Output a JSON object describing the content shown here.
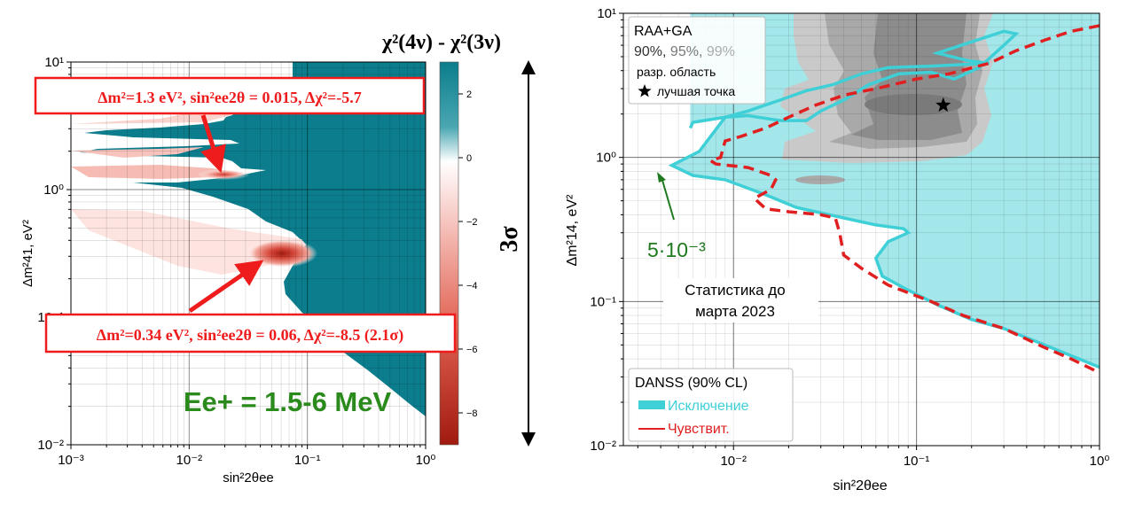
{
  "chart_data": [
    {
      "type": "heatmap",
      "title": "χ²(4ν) - χ²(3ν)",
      "xlabel": "sin²2θee",
      "ylabel": "Δm²41, eV²",
      "xscale": "log",
      "yscale": "log",
      "xlim": [
        0.001,
        1
      ],
      "ylim": [
        0.01,
        10
      ],
      "x_ticks": [
        "10⁻³",
        "10⁻²",
        "10⁻¹",
        "10⁰"
      ],
      "y_ticks": [
        "10⁻²",
        "10⁻¹",
        "10⁰",
        "10¹"
      ],
      "colorbar": {
        "range": [
          -9,
          3
        ],
        "ticks": [
          "2",
          "0",
          "−2",
          "−4",
          "−6",
          "−8"
        ],
        "colors": {
          "positive": "#0b7d8c",
          "zero": "#ffffff",
          "negative": "#a11a10"
        }
      },
      "range_marker": "3σ",
      "annotations": [
        {
          "text": "Δm²=1.3 eV², sin²ee2θ = 0.015, Δχ²=-5.7",
          "x": 0.015,
          "y": 1.3
        },
        {
          "text": "Δm²=0.34 eV², sin²ee2θ = 0.06, Δχ²=-8.5 (2.1σ)",
          "x": 0.06,
          "y": 0.34
        }
      ],
      "energy_label": "Ee+ = 1.5-6 MeV",
      "minima": [
        {
          "x": 0.015,
          "y": 1.3,
          "value": -5.7
        },
        {
          "x": 0.06,
          "y": 0.34,
          "value": -8.5
        }
      ]
    },
    {
      "type": "line",
      "xlabel": "sin²2θee",
      "ylabel": "Δm²14, eV²",
      "xscale": "log",
      "yscale": "log",
      "xlim": [
        0.0025,
        1
      ],
      "ylim": [
        0.01,
        10
      ],
      "x_ticks": [
        "10⁻²",
        "10⁻¹",
        "10⁰"
      ],
      "y_ticks": [
        "10⁻²",
        "10⁻¹",
        "10⁰",
        "10¹"
      ],
      "legend_top": {
        "title": "RAA+GA",
        "levels": [
          "90%",
          "95%",
          "99%"
        ],
        "region_label": "разр. область",
        "best_point_label": "лучшая точка"
      },
      "best_point": {
        "x": 0.14,
        "y": 2.3
      },
      "legend_bottom": {
        "title": "DANSS (90% CL)",
        "exclusion_label": "Исключение",
        "sensitivity_label": "Чувствит."
      },
      "annotation_min": {
        "text": "5·10⁻³",
        "x": 0.0046,
        "y": 0.88
      },
      "stats_note": [
        "Статистика до",
        "марта 2023"
      ],
      "series": [
        {
          "name": "Исключение",
          "color": "#3fcfd6",
          "points": [
            [
              0.0058,
              1.6
            ],
            [
              0.006,
              1.75
            ],
            [
              0.009,
              1.9
            ],
            [
              0.012,
              1.95
            ],
            [
              0.018,
              1.8
            ],
            [
              0.025,
              1.8
            ],
            [
              0.03,
              2.1
            ],
            [
              0.04,
              2.5
            ],
            [
              0.055,
              3.2
            ],
            [
              0.08,
              3.8
            ],
            [
              0.12,
              3.9
            ],
            [
              0.16,
              3.5
            ],
            [
              0.22,
              4.2
            ],
            [
              0.3,
              6.0
            ],
            [
              0.35,
              7.2
            ],
            [
              0.3,
              7.5
            ],
            [
              0.22,
              6.6
            ],
            [
              0.13,
              5.3
            ],
            [
              0.19,
              4.7
            ],
            [
              0.25,
              4.5
            ],
            [
              0.12,
              4.3
            ],
            [
              0.07,
              4.2
            ],
            [
              0.05,
              3.8
            ],
            [
              0.035,
              3.2
            ],
            [
              0.025,
              2.9
            ],
            [
              0.018,
              2.5
            ],
            [
              0.012,
              2.1
            ],
            [
              0.009,
              1.9
            ],
            [
              0.0065,
              1.1
            ],
            [
              0.0046,
              0.88
            ],
            [
              0.006,
              0.75
            ],
            [
              0.009,
              0.7
            ],
            [
              0.015,
              0.55
            ],
            [
              0.022,
              0.45
            ],
            [
              0.04,
              0.38
            ],
            [
              0.06,
              0.34
            ],
            [
              0.085,
              0.32
            ],
            [
              0.09,
              0.3
            ],
            [
              0.07,
              0.26
            ],
            [
              0.06,
              0.2
            ],
            [
              0.065,
              0.15
            ],
            [
              0.09,
              0.12
            ],
            [
              0.13,
              0.095
            ],
            [
              0.2,
              0.075
            ],
            [
              0.3,
              0.065
            ],
            [
              0.5,
              0.05
            ],
            [
              1,
              0.035
            ]
          ]
        },
        {
          "name": "Чувствит.",
          "color": "#e02020",
          "points": [
            [
              1,
              8.2
            ],
            [
              0.7,
              7.5
            ],
            [
              0.5,
              6.5
            ],
            [
              0.35,
              5.5
            ],
            [
              0.25,
              4.5
            ],
            [
              0.15,
              3.8
            ],
            [
              0.1,
              3.5
            ],
            [
              0.06,
              3.0
            ],
            [
              0.04,
              2.7
            ],
            [
              0.028,
              2.3
            ],
            [
              0.02,
              1.9
            ],
            [
              0.015,
              1.6
            ],
            [
              0.011,
              1.4
            ],
            [
              0.009,
              1.3
            ],
            [
              0.0085,
              1.0
            ],
            [
              0.0075,
              0.95
            ],
            [
              0.008,
              0.9
            ],
            [
              0.012,
              0.85
            ],
            [
              0.016,
              0.75
            ],
            [
              0.017,
              0.7
            ],
            [
              0.016,
              0.6
            ],
            [
              0.013,
              0.52
            ],
            [
              0.015,
              0.44
            ],
            [
              0.02,
              0.42
            ],
            [
              0.03,
              0.4
            ],
            [
              0.036,
              0.38
            ],
            [
              0.038,
              0.3
            ],
            [
              0.04,
              0.21
            ],
            [
              0.05,
              0.17
            ],
            [
              0.07,
              0.13
            ],
            [
              0.12,
              0.1
            ],
            [
              0.18,
              0.08
            ],
            [
              0.3,
              0.065
            ],
            [
              0.5,
              0.048
            ],
            [
              0.7,
              0.04
            ],
            [
              1,
              0.032
            ]
          ]
        }
      ]
    }
  ]
}
